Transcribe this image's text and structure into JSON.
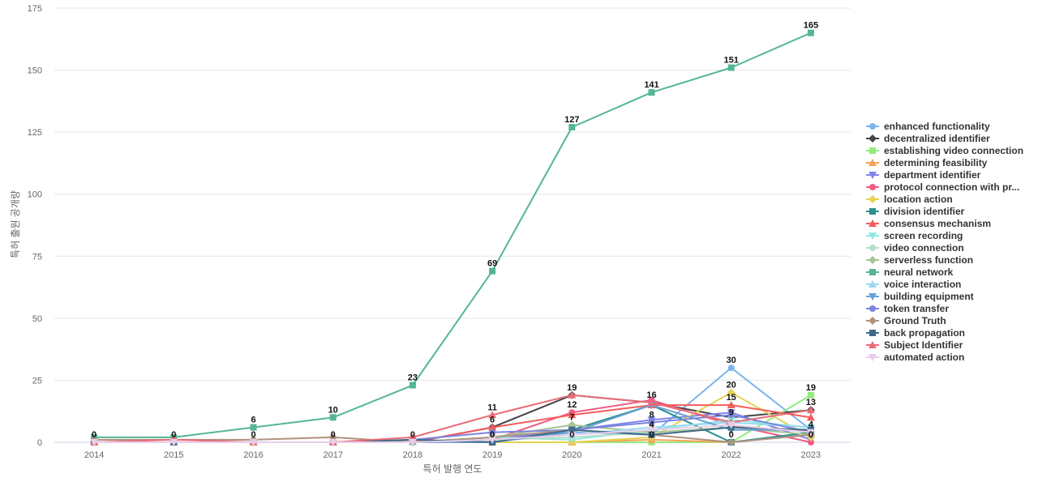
{
  "chart_data": {
    "type": "line",
    "xlabel": "특허 발행 연도",
    "ylabel": "특허 출원 공개량",
    "x": [
      "2014",
      "2015",
      "2016",
      "2017",
      "2018",
      "2019",
      "2020",
      "2021",
      "2022",
      "2023"
    ],
    "ylim": [
      0,
      175
    ],
    "yticks": [
      0,
      25,
      50,
      75,
      100,
      125,
      150,
      175
    ],
    "grid": true,
    "legend_position": "right",
    "series": [
      {
        "name": "enhanced functionality",
        "color": "#7cb5ec",
        "marker": "circle",
        "values": [
          0,
          0,
          0,
          0,
          0,
          2,
          4,
          3,
          30,
          5
        ]
      },
      {
        "name": "decentralized identifier",
        "color": "#434348",
        "marker": "diamond",
        "values": [
          0,
          0,
          0,
          0,
          0,
          6,
          19,
          16,
          10,
          13
        ]
      },
      {
        "name": "establishing video connection",
        "color": "#90ed7d",
        "marker": "square",
        "values": [
          0,
          0,
          0,
          0,
          0,
          0,
          0,
          0,
          0,
          19
        ]
      },
      {
        "name": "determining feasibility",
        "color": "#f7a35c",
        "marker": "triangle",
        "values": [
          0,
          0,
          0,
          0,
          0,
          0,
          0,
          1,
          0,
          3
        ]
      },
      {
        "name": "department identifier",
        "color": "#8085e9",
        "marker": "triangle-down",
        "values": [
          0,
          0,
          0,
          0,
          0,
          1,
          5,
          9,
          12,
          1
        ]
      },
      {
        "name": "protocol connection with pr...",
        "color": "#f15c80",
        "marker": "circle",
        "values": [
          0,
          0,
          0,
          0,
          0,
          1,
          12,
          17,
          7,
          0
        ]
      },
      {
        "name": "location action",
        "color": "#e4d354",
        "marker": "diamond",
        "values": [
          0,
          0,
          0,
          0,
          0,
          0,
          0,
          2,
          20,
          2
        ]
      },
      {
        "name": "division identifier",
        "color": "#2b908f",
        "marker": "square",
        "values": [
          0,
          0,
          0,
          0,
          0,
          0,
          5,
          15,
          0,
          4
        ]
      },
      {
        "name": "consensus mechanism",
        "color": "#f45b5b",
        "marker": "triangle",
        "values": [
          0,
          0,
          0,
          0,
          0,
          6,
          11,
          15,
          15,
          10
        ]
      },
      {
        "name": "screen recording",
        "color": "#91e8e1",
        "marker": "triangle-down",
        "values": [
          0,
          0,
          0,
          0,
          0,
          2,
          1,
          5,
          9,
          6
        ]
      },
      {
        "name": "video connection",
        "color": "#b7dfc8",
        "marker": "circle",
        "values": [
          0,
          0,
          0,
          0,
          0,
          1,
          2,
          4,
          6,
          5
        ]
      },
      {
        "name": "serverless function",
        "color": "#a6c596",
        "marker": "diamond",
        "values": [
          0,
          0,
          0,
          0,
          0,
          2,
          7,
          4,
          6,
          3
        ]
      },
      {
        "name": "neural network",
        "color": "#55b597",
        "marker": "square",
        "values": [
          2,
          2,
          6,
          10,
          23,
          69,
          127,
          141,
          151,
          165
        ]
      },
      {
        "name": "voice interaction",
        "color": "#9ad9f0",
        "marker": "triangle",
        "values": [
          0,
          0,
          0,
          0,
          0,
          1,
          3,
          6,
          8,
          6
        ]
      },
      {
        "name": "building equipment",
        "color": "#6a9fd4",
        "marker": "triangle-down",
        "values": [
          0,
          0,
          0,
          0,
          0,
          0,
          4,
          15,
          5,
          5
        ]
      },
      {
        "name": "token transfer",
        "color": "#7d84de",
        "marker": "circle",
        "values": [
          0,
          0,
          0,
          0,
          1,
          4,
          5,
          8,
          11,
          4
        ]
      },
      {
        "name": "Ground Truth",
        "color": "#b0927e",
        "marker": "diamond",
        "values": [
          1,
          1,
          1,
          2,
          0,
          2,
          5,
          3,
          0,
          3
        ]
      },
      {
        "name": "back propagation",
        "color": "#3f6b8c",
        "marker": "square",
        "values": [
          0,
          0,
          0,
          0,
          1,
          0,
          5,
          3,
          6,
          5
        ]
      },
      {
        "name": "Subject Identifier",
        "color": "#e96c78",
        "marker": "triangle",
        "values": [
          0,
          1,
          0,
          0,
          2,
          11,
          19,
          16,
          8,
          13
        ]
      },
      {
        "name": "automated action",
        "color": "#e8cde8",
        "marker": "triangle-down",
        "values": [
          0,
          0,
          0,
          0,
          0,
          1,
          3,
          5,
          7,
          4
        ]
      }
    ],
    "data_labels": [
      {
        "x": "2014",
        "value": 0
      },
      {
        "x": "2015",
        "value": 0
      },
      {
        "x": "2016",
        "value": 6
      },
      {
        "x": "2016",
        "value": 0
      },
      {
        "x": "2017",
        "value": 10
      },
      {
        "x": "2017",
        "value": 0
      },
      {
        "x": "2018",
        "value": 23
      },
      {
        "x": "2018",
        "value": 0
      },
      {
        "x": "2019",
        "value": 69
      },
      {
        "x": "2019",
        "value": 11
      },
      {
        "x": "2019",
        "value": 6
      },
      {
        "x": "2019",
        "value": 0
      },
      {
        "x": "2020",
        "value": 127
      },
      {
        "x": "2020",
        "value": 19
      },
      {
        "x": "2020",
        "value": 12
      },
      {
        "x": "2020",
        "value": 7
      },
      {
        "x": "2020",
        "value": 0
      },
      {
        "x": "2021",
        "value": 141
      },
      {
        "x": "2021",
        "value": 16
      },
      {
        "x": "2021",
        "value": 8
      },
      {
        "x": "2021",
        "value": 4
      },
      {
        "x": "2021",
        "value": 0
      },
      {
        "x": "2022",
        "value": 151
      },
      {
        "x": "2022",
        "value": 30
      },
      {
        "x": "2022",
        "value": 20
      },
      {
        "x": "2022",
        "value": 15
      },
      {
        "x": "2022",
        "value": 9
      },
      {
        "x": "2022",
        "value": 0
      },
      {
        "x": "2023",
        "value": 165
      },
      {
        "x": "2023",
        "value": 19
      },
      {
        "x": "2023",
        "value": 13
      },
      {
        "x": "2023",
        "value": 4
      },
      {
        "x": "2023",
        "value": 0
      }
    ]
  }
}
